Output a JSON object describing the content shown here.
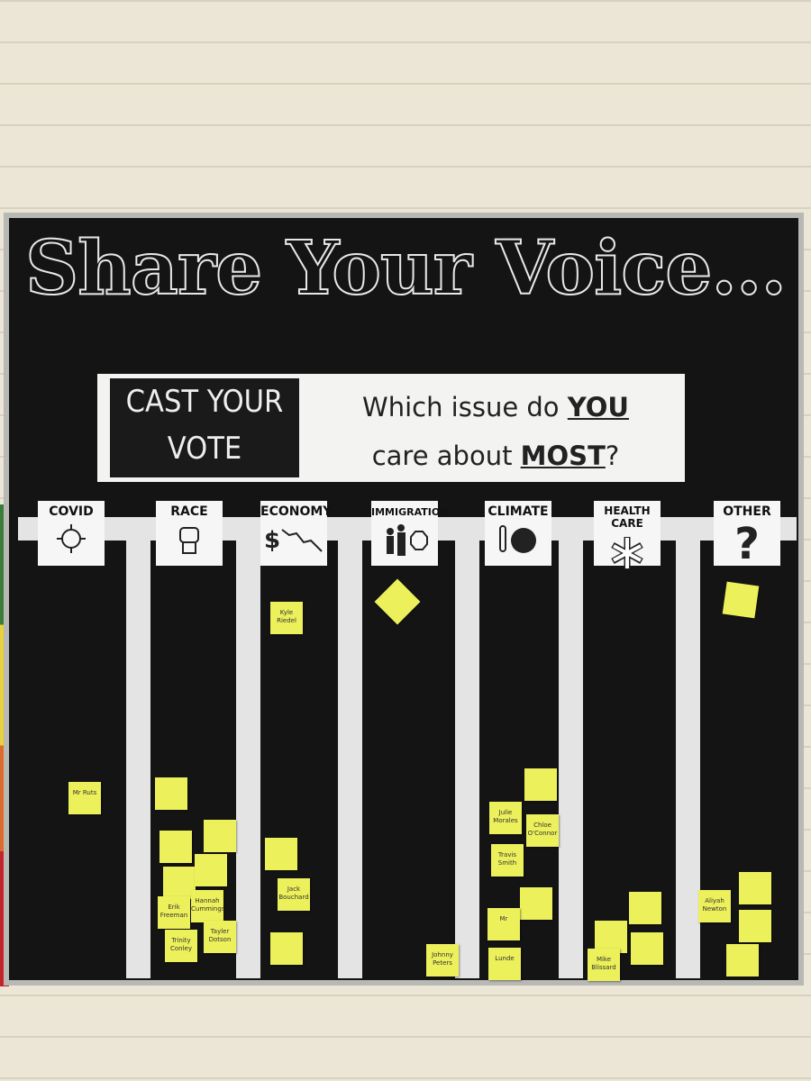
{
  "header": {
    "title": "Share Your Voice...",
    "badge": "CAST YOUR VOTE",
    "question": {
      "part1": "Which issue do",
      "you": "YOU",
      "part2": "care about",
      "most": "MOST",
      "part3": "?"
    }
  },
  "columns": [
    {
      "label": "COVID",
      "notes": [
        "Mr Ruts"
      ]
    },
    {
      "label": "RACE",
      "notes": [
        "Erik Freeman",
        "Hannah Cummings",
        "Tayler Dotson",
        "Trinity Conley"
      ]
    },
    {
      "label": "ECONOMY",
      "notes": [
        "Kyle Riedel",
        "Jack Bouchard"
      ]
    },
    {
      "label": "IMMIGRATION",
      "notes": [
        "Johnny Peters"
      ]
    },
    {
      "label": "CLIMATE",
      "notes": [
        "Julie Morales",
        "Chloe O'Connor",
        "Travis Smith",
        "Mr",
        "Lunde"
      ]
    },
    {
      "label": "HEALTH CARE",
      "notes": [
        "Mike Blissard"
      ]
    },
    {
      "label": "OTHER",
      "notes": [
        "Aliyah Newton"
      ]
    }
  ]
}
